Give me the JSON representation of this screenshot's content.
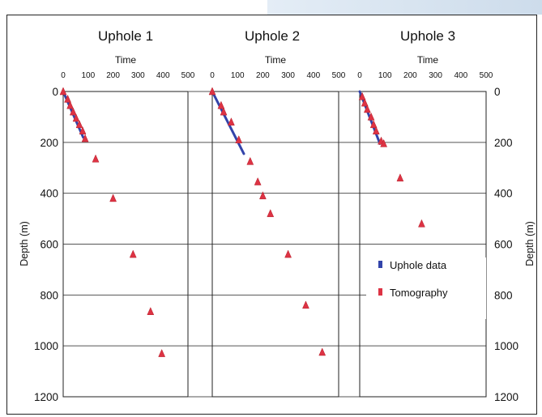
{
  "chart_data": [
    {
      "type": "scatter",
      "title": "Uphole 1",
      "xlabel": "Time",
      "ylabel": "Depth (m)",
      "xlim": [
        0,
        500
      ],
      "ylim": [
        1200,
        0
      ],
      "xticks": [
        "0",
        "100",
        "200",
        "300",
        "400",
        "500"
      ],
      "yticks": [
        "0",
        "200",
        "400",
        "600",
        "800",
        "1000",
        "1200"
      ],
      "grid": "horizontal",
      "series": [
        {
          "name": "Uphole data",
          "type": "line",
          "color": "#3344aa",
          "x": [
            0,
            80
          ],
          "y": [
            0,
            180
          ]
        },
        {
          "name": "Tomography",
          "type": "scatter",
          "color": "#dd3344",
          "x": [
            0,
            18,
            28,
            40,
            52,
            65,
            78,
            88,
            130,
            200,
            280,
            350,
            395
          ],
          "y": [
            0,
            30,
            55,
            80,
            105,
            130,
            155,
            185,
            265,
            420,
            640,
            865,
            1030
          ]
        }
      ]
    },
    {
      "type": "scatter",
      "title": "Uphole 2",
      "xlabel": "Time",
      "ylabel": "Depth (m)",
      "xlim": [
        0,
        500
      ],
      "ylim": [
        1200,
        0
      ],
      "xticks": [
        "0",
        "100",
        "200",
        "300",
        "400",
        "500"
      ],
      "yticks": [
        "0",
        "200",
        "400",
        "600",
        "800",
        "1000",
        "1200"
      ],
      "grid": "horizontal",
      "series": [
        {
          "name": "Uphole data",
          "type": "line",
          "color": "#3344aa",
          "x": [
            0,
            125
          ],
          "y": [
            0,
            245
          ]
        },
        {
          "name": "Tomography",
          "type": "scatter",
          "color": "#dd3344",
          "x": [
            0,
            35,
            45,
            75,
            105,
            150,
            180,
            200,
            230,
            300,
            370,
            435
          ],
          "y": [
            0,
            55,
            80,
            120,
            190,
            275,
            355,
            410,
            480,
            640,
            840,
            1025
          ]
        }
      ]
    },
    {
      "type": "scatter",
      "title": "Uphole 3",
      "xlabel": "Time",
      "ylabel": "Depth (m)",
      "xlim": [
        0,
        500
      ],
      "ylim": [
        1200,
        0
      ],
      "xticks": [
        "0",
        "100",
        "200",
        "300",
        "400",
        "500"
      ],
      "yticks": [
        "0",
        "200",
        "400",
        "600",
        "800",
        "1000",
        "1200"
      ],
      "grid": "horizontal",
      "series": [
        {
          "name": "Uphole data",
          "type": "line",
          "color": "#3344aa",
          "x": [
            0,
            80
          ],
          "y": [
            0,
            205
          ]
        },
        {
          "name": "Tomography",
          "type": "scatter",
          "color": "#dd3344",
          "x": [
            10,
            20,
            30,
            45,
            55,
            65,
            85,
            95,
            160,
            245,
            345
          ],
          "y": [
            20,
            45,
            70,
            100,
            130,
            155,
            195,
            205,
            340,
            520,
            745
          ]
        }
      ]
    }
  ],
  "legend": {
    "position": "bottom-right",
    "items": [
      {
        "label": "Uphole data",
        "color": "#3344aa"
      },
      {
        "label": "Tomography",
        "color": "#dd3344"
      }
    ]
  }
}
